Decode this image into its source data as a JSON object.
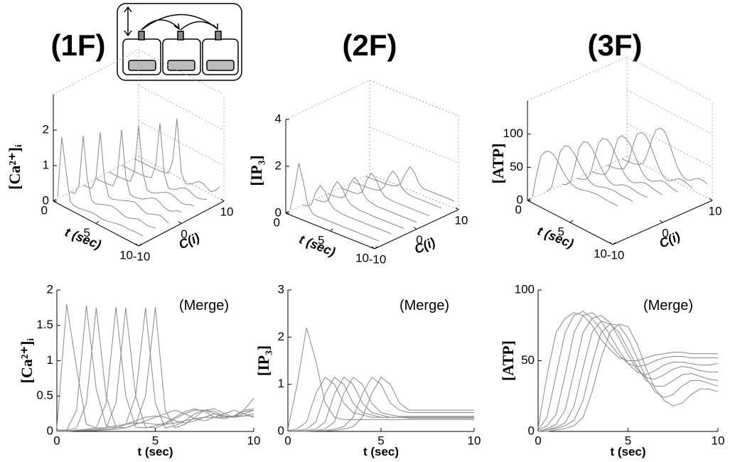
{
  "chart_data": [
    {
      "type": "line",
      "title": "(1F)",
      "ylabel": "[Ca²⁺]ᵢ",
      "xlabel": "t (sec)",
      "annotation": "(Merge)",
      "x": [
        0,
        0.5,
        1,
        1.5,
        2,
        2.5,
        3,
        3.5,
        4,
        4.5,
        5,
        5.5,
        6,
        6.5,
        7,
        7.5,
        8,
        8.5,
        9,
        9.5,
        10
      ],
      "xlim": [
        0,
        10
      ],
      "xticks": [
        0,
        5,
        10
      ],
      "ylim": [
        0,
        2
      ],
      "yticks": [
        0,
        0.5,
        1,
        1.5,
        2
      ],
      "series": [
        {
          "c": -9,
          "color": "#888888",
          "values": [
            0.05,
            1.8,
            0.9,
            0.1,
            0.05,
            0.05,
            0.08,
            0.1,
            0.12,
            0.12,
            0.1,
            0.1,
            0.12,
            0.15,
            0.18,
            0.2,
            0.2,
            0.2,
            0.22,
            0.22,
            0.22
          ]
        },
        {
          "c": -6,
          "color": "#888888",
          "values": [
            0.02,
            0.02,
            0.3,
            1.78,
            0.6,
            0.08,
            0.05,
            0.1,
            0.15,
            0.2,
            0.22,
            0.2,
            0.15,
            0.12,
            0.15,
            0.2,
            0.25,
            0.22,
            0.2,
            0.22,
            0.25
          ]
        },
        {
          "c": -3,
          "color": "#888888",
          "values": [
            0.01,
            0.02,
            0.05,
            0.4,
            1.75,
            0.5,
            0.06,
            0.05,
            0.1,
            0.15,
            0.2,
            0.25,
            0.3,
            0.25,
            0.18,
            0.15,
            0.2,
            0.25,
            0.3,
            0.25,
            0.2
          ]
        },
        {
          "c": 0,
          "color": "#888888",
          "values": [
            0.01,
            0.01,
            0.02,
            0.03,
            0.05,
            0.4,
            1.76,
            0.5,
            0.06,
            0.05,
            0.08,
            0.12,
            0.2,
            0.28,
            0.32,
            0.28,
            0.2,
            0.18,
            0.22,
            0.3,
            0.32
          ]
        },
        {
          "c": 3,
          "color": "#888888",
          "values": [
            0.01,
            0.01,
            0.01,
            0.02,
            0.03,
            0.05,
            0.4,
            1.75,
            0.5,
            0.06,
            0.05,
            0.1,
            0.18,
            0.25,
            0.3,
            0.3,
            0.25,
            0.2,
            0.22,
            0.28,
            0.3
          ]
        },
        {
          "c": 6,
          "color": "#888888",
          "values": [
            0,
            0.01,
            0.01,
            0.01,
            0.02,
            0.03,
            0.05,
            0.1,
            0.5,
            1.75,
            0.4,
            0.05,
            0.08,
            0.15,
            0.25,
            0.3,
            0.28,
            0.22,
            0.2,
            0.25,
            0.3
          ]
        },
        {
          "c": 9,
          "color": "#888888",
          "values": [
            0,
            0,
            0.01,
            0.01,
            0.01,
            0.02,
            0.03,
            0.05,
            0.1,
            0.5,
            1.76,
            0.3,
            0.05,
            0.1,
            0.2,
            0.3,
            0.32,
            0.25,
            0.2,
            0.3,
            0.47
          ]
        }
      ],
      "view3d": {
        "clabel": "C(i)",
        "clim": [
          -10,
          10
        ],
        "cticks": [
          -10,
          0,
          10
        ],
        "zlim": [
          0,
          3
        ],
        "zticks": [
          0,
          1,
          2
        ]
      }
    },
    {
      "type": "line",
      "title": "(2F)",
      "ylabel": "[IP₃]",
      "xlabel": "t (sec)",
      "annotation": "(Merge)",
      "x": [
        0,
        0.5,
        1,
        1.5,
        2,
        2.5,
        3,
        3.5,
        4,
        4.5,
        5,
        5.5,
        6,
        6.5,
        7,
        7.5,
        8,
        8.5,
        9,
        9.5,
        10
      ],
      "xlim": [
        0,
        10
      ],
      "xticks": [
        0,
        5,
        10
      ],
      "ylim": [
        0,
        3
      ],
      "yticks": [
        0,
        1,
        2,
        3
      ],
      "series": [
        {
          "c": -9,
          "color": "#888888",
          "values": [
            0.05,
            1.0,
            2.2,
            1.5,
            0.6,
            0.3,
            0.25,
            0.25,
            0.25,
            0.25,
            0.25,
            0.25,
            0.25,
            0.25,
            0.25,
            0.25,
            0.25,
            0.25,
            0.25,
            0.25,
            0.25
          ]
        },
        {
          "c": -6,
          "color": "#888888",
          "values": [
            0.02,
            0.05,
            0.2,
            0.8,
            1.15,
            1.0,
            0.6,
            0.4,
            0.35,
            0.3,
            0.3,
            0.3,
            0.3,
            0.3,
            0.3,
            0.3,
            0.3,
            0.3,
            0.3,
            0.3,
            0.3
          ]
        },
        {
          "c": -3,
          "color": "#888888",
          "values": [
            0.01,
            0.02,
            0.05,
            0.2,
            0.8,
            1.15,
            1.0,
            0.6,
            0.4,
            0.35,
            0.3,
            0.3,
            0.3,
            0.28,
            0.28,
            0.28,
            0.28,
            0.28,
            0.28,
            0.28,
            0.28
          ]
        },
        {
          "c": 0,
          "color": "#888888",
          "values": [
            0.01,
            0.01,
            0.02,
            0.05,
            0.2,
            0.8,
            1.15,
            1.0,
            0.6,
            0.4,
            0.35,
            0.3,
            0.3,
            0.3,
            0.3,
            0.3,
            0.3,
            0.3,
            0.3,
            0.3,
            0.3
          ]
        },
        {
          "c": 3,
          "color": "#888888",
          "values": [
            0,
            0.01,
            0.01,
            0.02,
            0.05,
            0.2,
            0.8,
            1.15,
            1.0,
            0.6,
            0.4,
            0.35,
            0.32,
            0.32,
            0.32,
            0.32,
            0.32,
            0.32,
            0.32,
            0.32,
            0.32
          ]
        },
        {
          "c": 6,
          "color": "#888888",
          "values": [
            0,
            0,
            0.01,
            0.01,
            0.02,
            0.05,
            0.1,
            0.3,
            0.8,
            1.15,
            1.0,
            0.6,
            0.45,
            0.4,
            0.4,
            0.4,
            0.4,
            0.4,
            0.4,
            0.4,
            0.4
          ]
        },
        {
          "c": 9,
          "color": "#888888",
          "values": [
            0,
            0,
            0,
            0.01,
            0.01,
            0.02,
            0.05,
            0.1,
            0.3,
            0.8,
            1.15,
            1.0,
            0.6,
            0.45,
            0.45,
            0.45,
            0.45,
            0.45,
            0.45,
            0.45,
            0.45
          ]
        }
      ],
      "view3d": {
        "clabel": "C(i)",
        "clim": [
          -10,
          10
        ],
        "cticks": [
          -10,
          0,
          10
        ],
        "zlim": [
          0,
          4
        ],
        "zticks": [
          0,
          2,
          4
        ]
      }
    },
    {
      "type": "line",
      "title": "(3F)",
      "ylabel": "[ATP]",
      "xlabel": "t (sec)",
      "annotation": "(Merge)",
      "x": [
        0,
        0.5,
        1,
        1.5,
        2,
        2.5,
        3,
        3.5,
        4,
        4.5,
        5,
        5.5,
        6,
        6.5,
        7,
        7.5,
        8,
        8.5,
        9,
        9.5,
        10
      ],
      "xlim": [
        0,
        10
      ],
      "xticks": [
        0,
        5,
        10
      ],
      "ylim": [
        0,
        100
      ],
      "yticks": [
        0,
        50,
        100
      ],
      "series": [
        {
          "c": -9,
          "color": "#888888",
          "values": [
            2,
            40,
            70,
            80,
            84,
            82,
            75,
            65,
            58,
            52,
            50,
            50,
            52,
            54,
            55,
            56,
            56,
            55,
            55,
            55,
            55
          ]
        },
        {
          "c": -6,
          "color": "#888888",
          "values": [
            1,
            10,
            40,
            70,
            82,
            85,
            80,
            72,
            62,
            54,
            48,
            46,
            47,
            50,
            52,
            53,
            53,
            52,
            52,
            52,
            52
          ]
        },
        {
          "c": -3,
          "color": "#888888",
          "values": [
            1,
            4,
            12,
            40,
            70,
            82,
            84,
            78,
            68,
            57,
            48,
            42,
            40,
            43,
            47,
            49,
            49,
            48,
            47,
            47,
            48
          ]
        },
        {
          "c": 0,
          "color": "#888888",
          "values": [
            0,
            2,
            5,
            15,
            42,
            70,
            80,
            82,
            77,
            66,
            54,
            44,
            38,
            37,
            40,
            44,
            46,
            45,
            43,
            42,
            42
          ]
        },
        {
          "c": 3,
          "color": "#888888",
          "values": [
            0,
            1,
            3,
            6,
            18,
            45,
            70,
            78,
            76,
            70,
            58,
            46,
            36,
            32,
            32,
            36,
            40,
            41,
            39,
            37,
            36
          ]
        },
        {
          "c": 6,
          "color": "#888888",
          "values": [
            0,
            1,
            2,
            4,
            8,
            22,
            48,
            70,
            76,
            75,
            66,
            52,
            38,
            28,
            24,
            26,
            32,
            36,
            36,
            34,
            32
          ]
        },
        {
          "c": 9,
          "color": "#888888",
          "values": [
            0,
            0,
            1,
            2,
            4,
            10,
            28,
            52,
            70,
            76,
            74,
            62,
            45,
            30,
            22,
            18,
            20,
            26,
            30,
            30,
            28
          ]
        }
      ],
      "view3d": {
        "clabel": "C(i)",
        "clim": [
          -10,
          10
        ],
        "cticks": [
          -10,
          0,
          10
        ],
        "zlim": [
          0,
          150
        ],
        "zticks": [
          0,
          50,
          100
        ]
      }
    }
  ]
}
